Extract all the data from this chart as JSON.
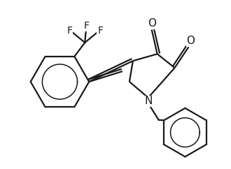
{
  "background_color": "#ffffff",
  "line_color": "#1a1a1a",
  "line_width": 1.6,
  "font_size": 10,
  "figsize": [
    3.3,
    2.42
  ],
  "dpi": 100,
  "xlim": [
    0,
    33
  ],
  "ylim": [
    0,
    24.2
  ]
}
